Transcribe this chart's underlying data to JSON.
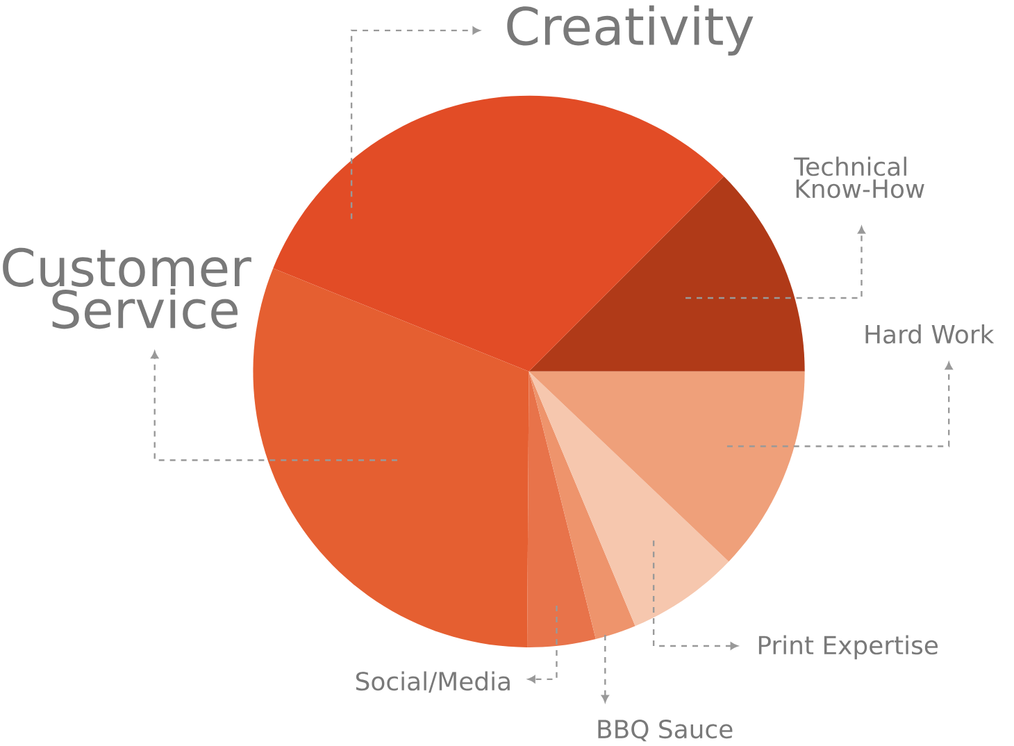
{
  "chart_data": {
    "type": "pie",
    "categories": [
      "Technical Know-How",
      "Creativity",
      "Customer Service",
      "Social/Media",
      "BBQ Sauce",
      "Print Expertise",
      "Hard Work"
    ],
    "values": [
      12.5,
      31.4,
      31,
      4,
      2.4,
      6.6,
      12.1
    ],
    "colors": [
      "#b03a18",
      "#e24c26",
      "#e55f31",
      "#e8734a",
      "#ee946c",
      "#f6c7ae",
      "#efa07a"
    ]
  }
}
